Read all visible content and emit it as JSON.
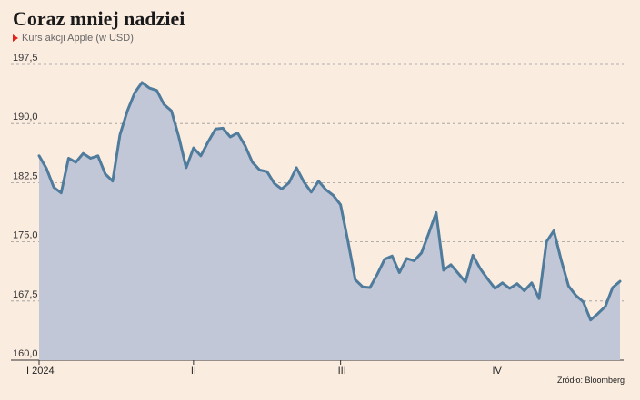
{
  "header": {
    "title": "Coraz mniej nadziei",
    "subtitle": "Kurs akcji Apple (w USD)",
    "source": "Źródło: Bloomberg",
    "accent_color": "#e0221b"
  },
  "chart_data": {
    "type": "area",
    "title": "Coraz mniej nadziei",
    "subtitle": "Kurs akcji Apple (w USD)",
    "y_ticks": [
      "197,5",
      "190,0",
      "182,5",
      "175,0",
      "167,5",
      "160,0"
    ],
    "y_tick_values": [
      197.5,
      190.0,
      182.5,
      175.0,
      167.5,
      160.0
    ],
    "ylim": [
      160,
      197.5
    ],
    "x_ticks": [
      {
        "label": "I 2024",
        "index": 0
      },
      {
        "label": "II",
        "index": 21
      },
      {
        "label": "III",
        "index": 41
      },
      {
        "label": "IV",
        "index": 62
      }
    ],
    "grid": true,
    "line_color": "#4f7b9c",
    "fill_color": "#c1c7d6",
    "values": [
      185.9,
      184.3,
      181.9,
      181.2,
      185.6,
      185.1,
      186.2,
      185.6,
      185.9,
      183.6,
      182.7,
      188.6,
      191.6,
      193.9,
      195.2,
      194.5,
      194.2,
      192.4,
      191.6,
      188.3,
      184.4,
      186.9,
      185.9,
      187.7,
      189.3,
      189.4,
      188.3,
      188.8,
      187.2,
      185.1,
      184.1,
      183.9,
      182.4,
      181.7,
      182.5,
      184.4,
      182.6,
      181.3,
      182.7,
      181.6,
      180.9,
      179.7,
      175.1,
      170.2,
      169.3,
      169.2,
      170.9,
      172.8,
      173.2,
      171.1,
      172.9,
      172.6,
      173.6,
      176.1,
      178.7,
      171.4,
      172.1,
      171.0,
      169.9,
      173.3,
      171.6,
      170.3,
      169.1,
      169.8,
      169.1,
      169.7,
      168.8,
      169.8,
      167.8,
      175.0,
      176.4,
      172.7,
      169.4,
      168.2,
      167.4,
      165.1,
      165.9,
      166.8,
      169.2,
      170.0
    ]
  }
}
